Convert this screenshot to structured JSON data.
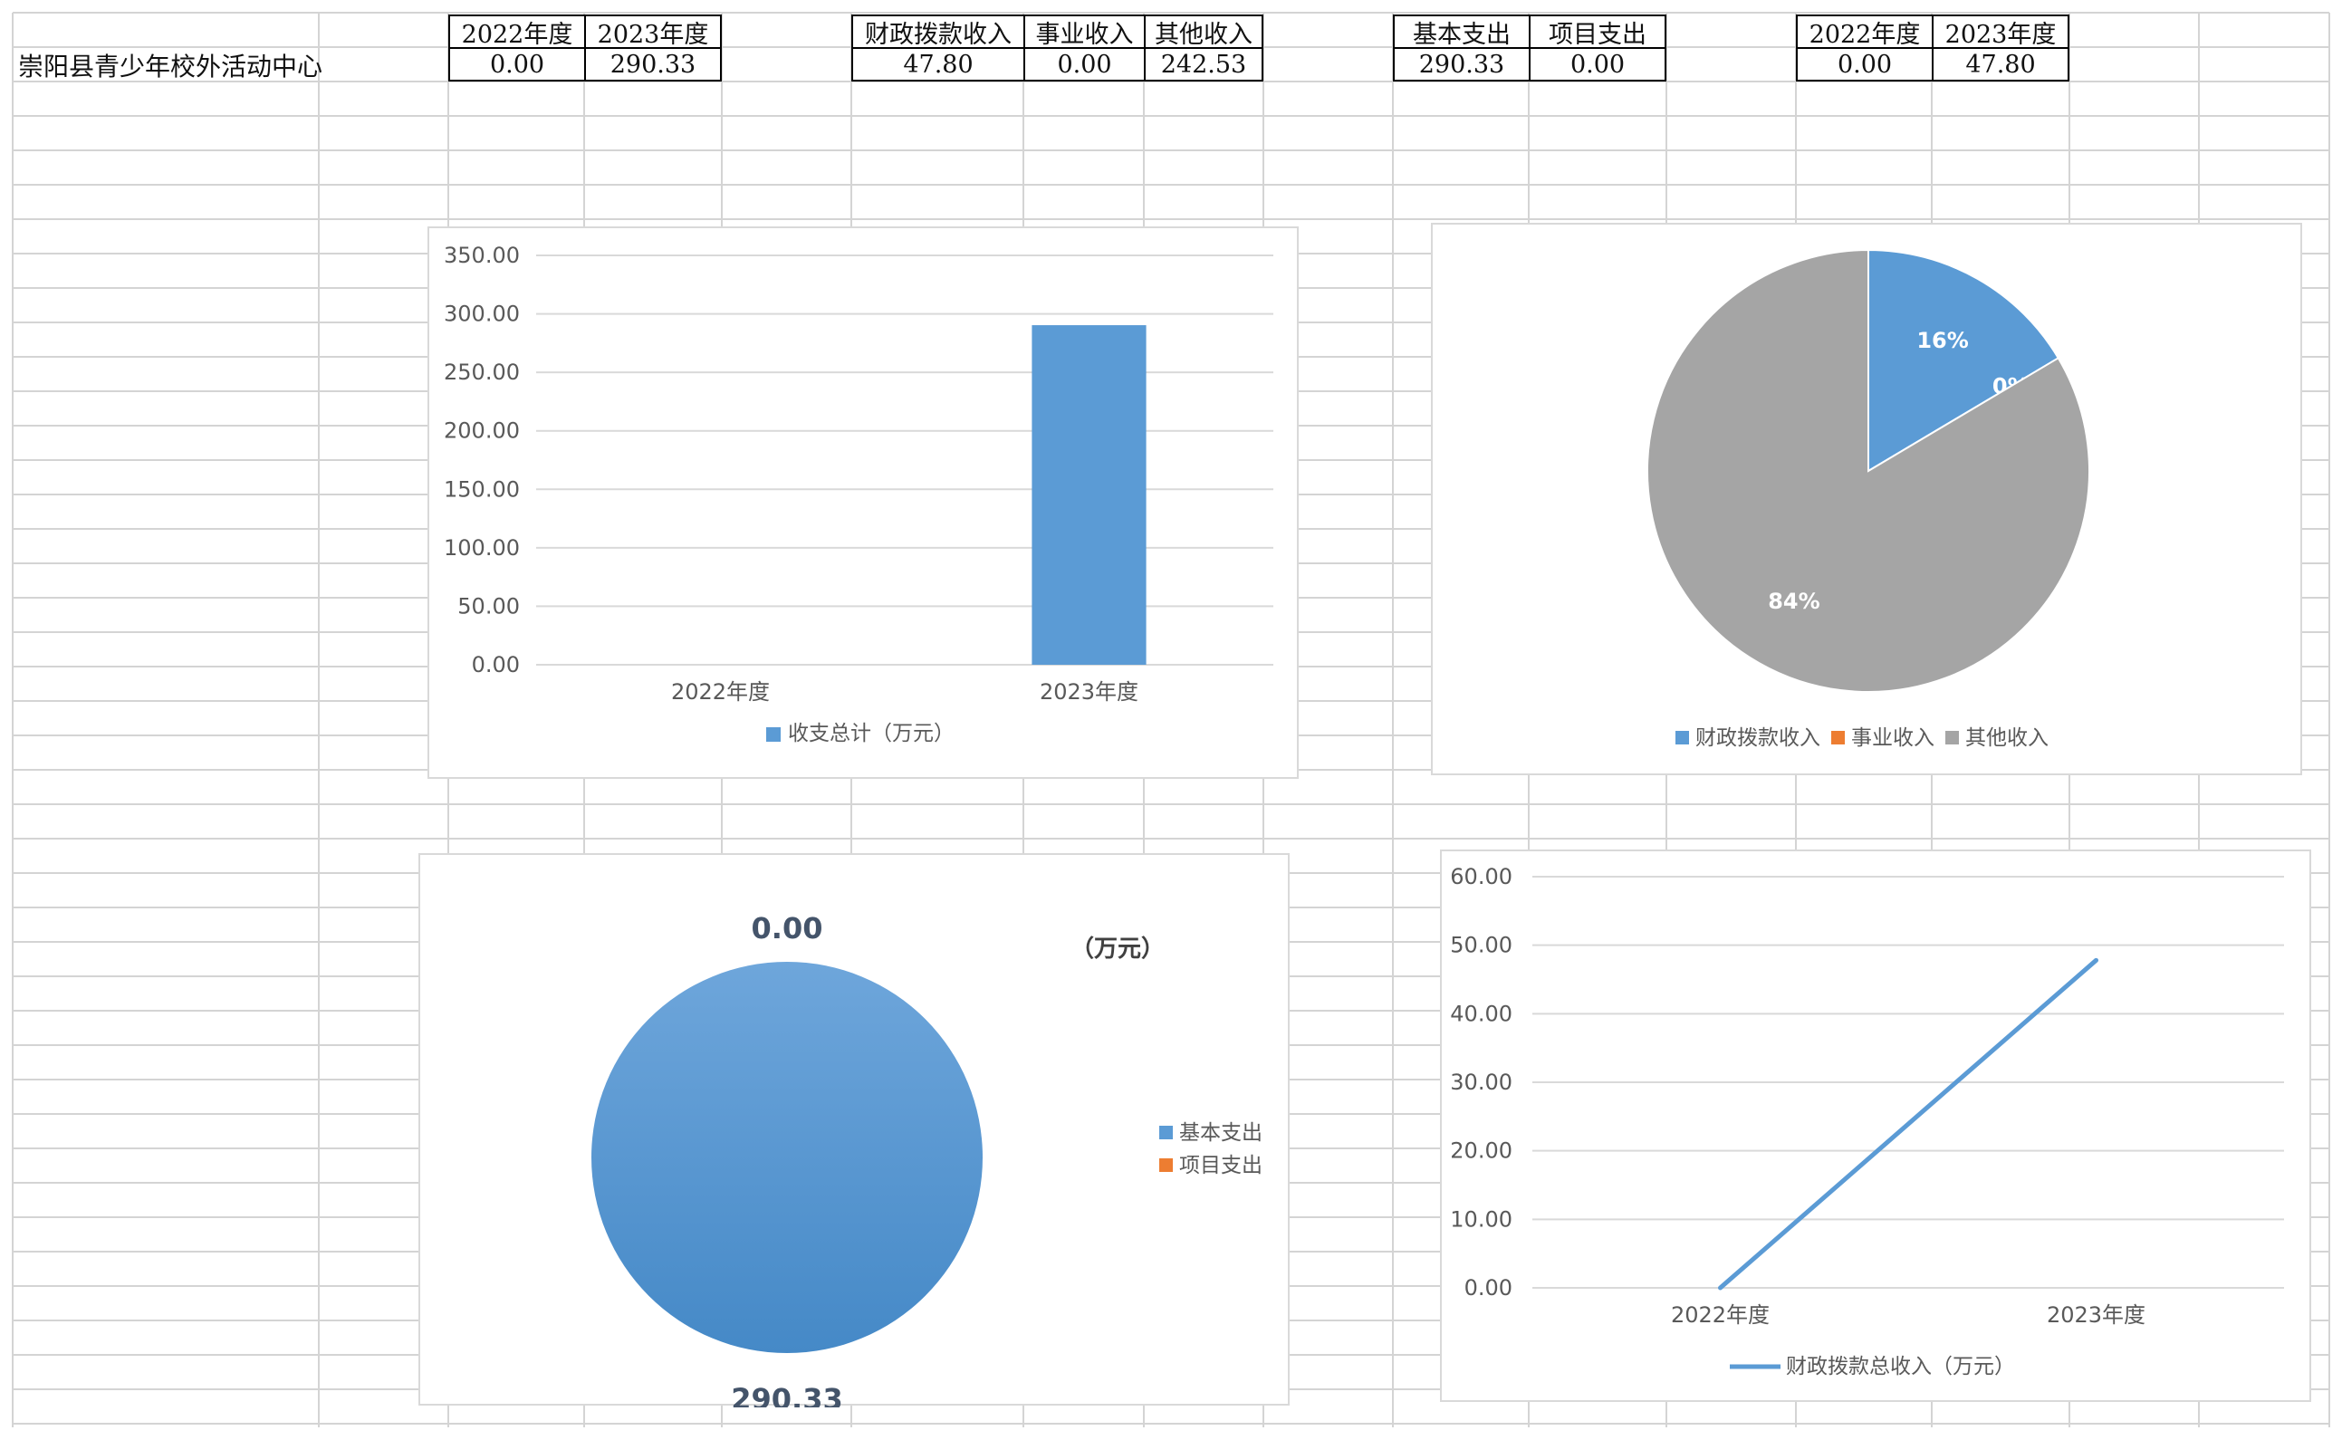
{
  "sheet": {
    "org_name": "崇阳县青少年校外活动中心",
    "table_total": {
      "headers": [
        "2022年度",
        "2023年度"
      ],
      "values": [
        "0.00",
        "290.33"
      ]
    },
    "table_income": {
      "headers": [
        "财政拨款收入",
        "事业收入",
        "其他收入"
      ],
      "values": [
        "47.80",
        "0.00",
        "242.53"
      ]
    },
    "table_expense": {
      "headers": [
        "基本支出",
        "项目支出"
      ],
      "values": [
        "290.33",
        "0.00"
      ]
    },
    "table_fiscal": {
      "headers": [
        "2022年度",
        "2023年度"
      ],
      "values": [
        "0.00",
        "47.80"
      ]
    }
  },
  "colors": {
    "blue": "#5b9bd5",
    "orange": "#ed7d31",
    "gray": "#a5a5a5",
    "grid": "#d9d9d9"
  },
  "chart_data": [
    {
      "type": "bar",
      "categories": [
        "2022年度",
        "2023年度"
      ],
      "series": [
        {
          "name": "收支总计（万元）",
          "values": [
            0.0,
            290.33
          ]
        }
      ],
      "ylim": [
        0,
        350
      ],
      "yticks": [
        "0.00",
        "50.00",
        "100.00",
        "150.00",
        "200.00",
        "250.00",
        "300.00",
        "350.00"
      ],
      "legend": "bottom"
    },
    {
      "type": "pie",
      "categories": [
        "财政拨款收入",
        "事业收入",
        "其他收入"
      ],
      "values": [
        47.8,
        0.0,
        242.53
      ],
      "data_labels": [
        "16%",
        "0%",
        "84%"
      ],
      "legend": "bottom"
    },
    {
      "type": "pie",
      "categories": [
        "基本支出",
        "项目支出"
      ],
      "values": [
        290.33,
        0.0
      ],
      "data_labels": [
        "290.33",
        "0.00"
      ],
      "annotation": "（万元）",
      "legend": "right"
    },
    {
      "type": "line",
      "categories": [
        "2022年度",
        "2023年度"
      ],
      "series": [
        {
          "name": "财政拨款总收入（万元）",
          "values": [
            0.0,
            47.8
          ]
        }
      ],
      "ylim": [
        0,
        60
      ],
      "yticks": [
        "0.00",
        "10.00",
        "20.00",
        "30.00",
        "40.00",
        "50.00",
        "60.00"
      ],
      "legend": "bottom"
    }
  ]
}
